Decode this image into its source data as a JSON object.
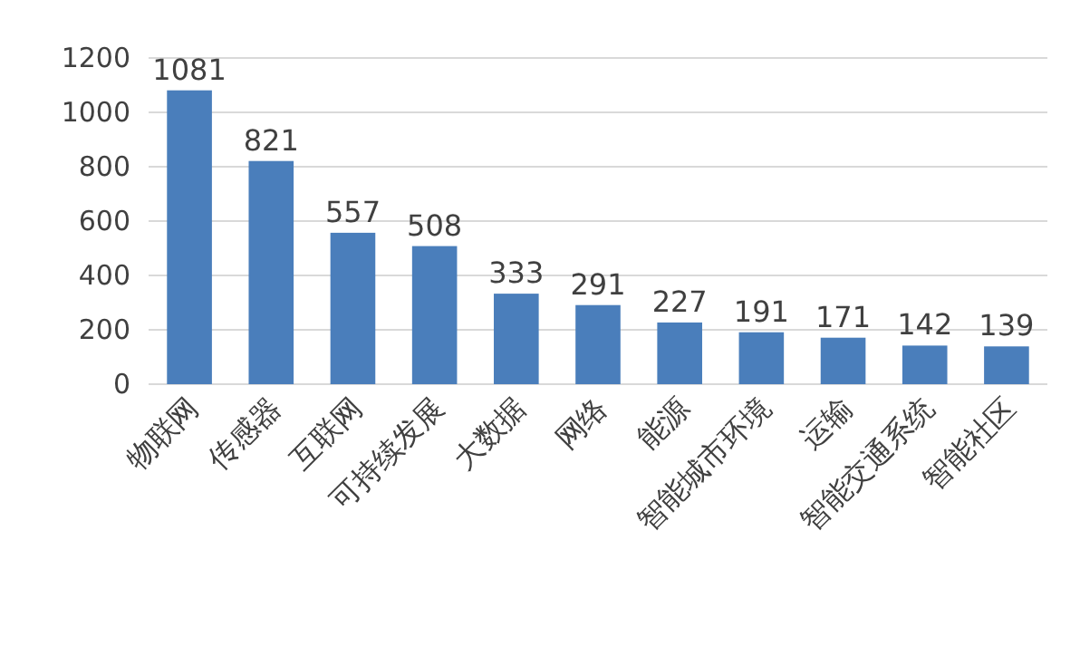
{
  "chart_data": {
    "type": "bar",
    "categories": [
      "物联网",
      "传感器",
      "互联网",
      "可持续发展",
      "大数据",
      "网络",
      "能源",
      "智能城市环境",
      "运输",
      "智能交通系统",
      "智能社区"
    ],
    "values": [
      1081,
      821,
      557,
      508,
      333,
      291,
      227,
      191,
      171,
      142,
      139
    ],
    "color": "#4a7ebb",
    "ylim": [
      0,
      1200
    ],
    "yticks": [
      0,
      200,
      400,
      600,
      800,
      1000,
      1200
    ],
    "grid": "y",
    "data_labels": true
  }
}
